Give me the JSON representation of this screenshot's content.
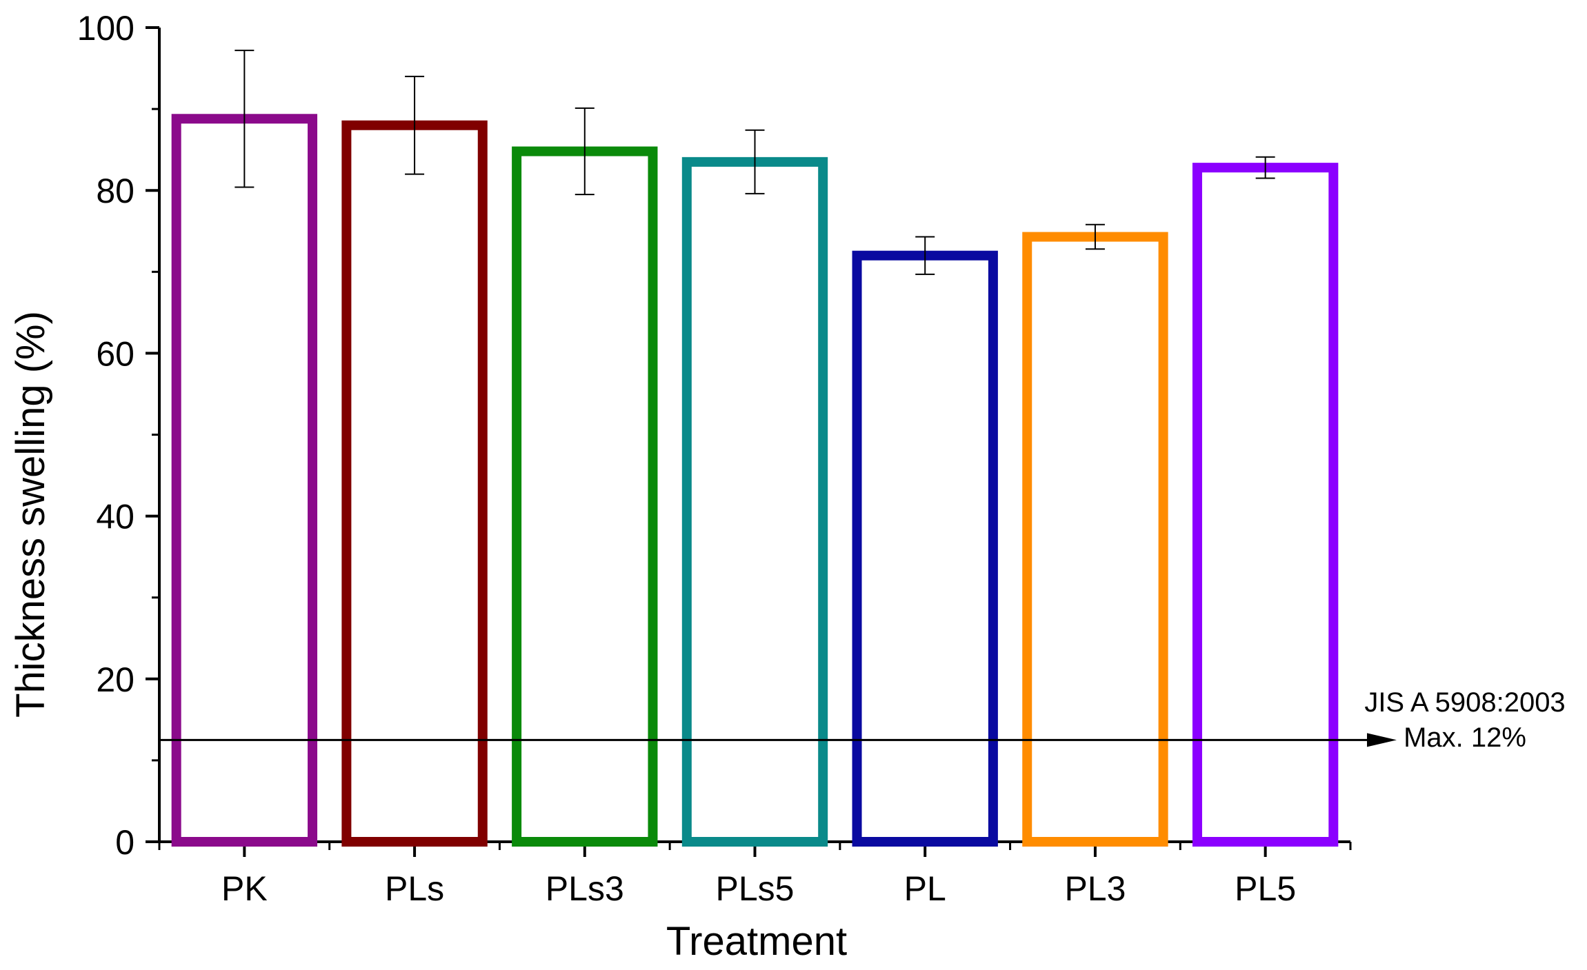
{
  "chart_data": {
    "type": "bar",
    "title": "",
    "xlabel": "Treatment",
    "ylabel": "Thickness swelling (%)",
    "ylim": [
      0,
      100
    ],
    "yticks": [
      "0",
      "20",
      "40",
      "60",
      "80",
      "100"
    ],
    "grid": false,
    "categories": [
      "PK",
      "PLs",
      "PLs3",
      "PLs5",
      "PL",
      "PL3",
      "PL5"
    ],
    "values": [
      88.8,
      88.0,
      84.8,
      83.5,
      72.0,
      74.3,
      82.8
    ],
    "errors": [
      8.4,
      6.0,
      5.3,
      3.9,
      2.3,
      1.5,
      1.3
    ],
    "colors": [
      "#8B0A8B",
      "#800000",
      "#0A8A0A",
      "#0A8A8A",
      "#0A0AA0",
      "#FF8C00",
      "#8B00FF"
    ],
    "fill": "none",
    "reference_line": {
      "value": 12.5,
      "label_line1": "JIS A 5908:2003",
      "label_line2": "Max. 12%"
    }
  }
}
